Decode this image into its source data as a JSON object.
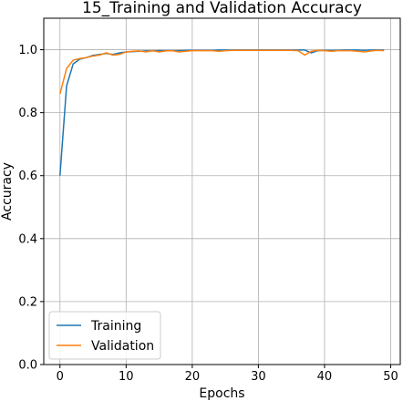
{
  "chart_data": {
    "type": "line",
    "title": "15_Training and Validation Accuracy",
    "xlabel": "Epochs",
    "ylabel": "Accuracy",
    "xlim": [
      -2.45,
      51.45
    ],
    "ylim": [
      0.0,
      1.1
    ],
    "xticks": [
      0,
      10,
      20,
      30,
      40,
      50
    ],
    "yticks": [
      0.0,
      0.2,
      0.4,
      0.6,
      0.8,
      1.0
    ],
    "grid": true,
    "legend_position": "lower-left",
    "x": [
      0,
      1,
      2,
      3,
      4,
      5,
      6,
      7,
      8,
      9,
      10,
      11,
      12,
      13,
      14,
      15,
      16,
      17,
      18,
      19,
      20,
      21,
      22,
      23,
      24,
      25,
      26,
      27,
      28,
      29,
      30,
      31,
      32,
      33,
      34,
      35,
      36,
      37,
      38,
      39,
      40,
      41,
      42,
      43,
      44,
      45,
      46,
      47,
      48,
      49
    ],
    "series": [
      {
        "name": "Training",
        "color": "#1f77b4",
        "values": [
          0.6,
          0.885,
          0.955,
          0.97,
          0.975,
          0.982,
          0.985,
          0.988,
          0.985,
          0.99,
          0.993,
          0.994,
          0.995,
          0.996,
          0.996,
          0.997,
          0.997,
          0.997,
          0.997,
          0.998,
          0.998,
          0.998,
          0.998,
          0.998,
          0.999,
          0.999,
          0.999,
          0.999,
          0.999,
          0.999,
          0.999,
          0.999,
          0.999,
          0.999,
          0.999,
          0.999,
          0.999,
          0.999,
          0.99,
          0.997,
          0.998,
          0.998,
          0.998,
          0.999,
          0.999,
          0.999,
          0.998,
          0.999,
          0.999,
          0.999
        ]
      },
      {
        "name": "Validation",
        "color": "#ff7f0e",
        "values": [
          0.86,
          0.94,
          0.967,
          0.972,
          0.975,
          0.98,
          0.983,
          0.99,
          0.983,
          0.985,
          0.993,
          0.995,
          0.996,
          0.993,
          0.997,
          0.993,
          0.996,
          0.997,
          0.993,
          0.995,
          0.997,
          0.997,
          0.997,
          0.997,
          0.995,
          0.997,
          0.998,
          0.998,
          0.998,
          0.998,
          0.998,
          0.998,
          0.998,
          0.998,
          0.998,
          0.998,
          0.997,
          0.983,
          0.995,
          0.998,
          0.997,
          0.995,
          0.997,
          0.997,
          0.997,
          0.995,
          0.993,
          0.996,
          0.998,
          0.997
        ]
      }
    ]
  }
}
